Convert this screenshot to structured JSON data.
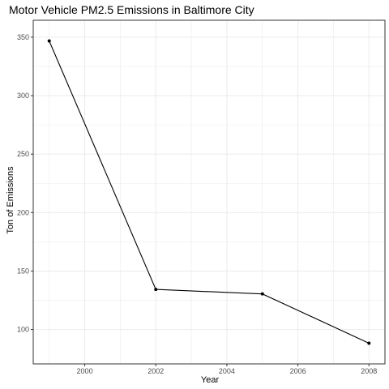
{
  "chart_data": {
    "type": "line",
    "title": "Motor Vehicle PM2.5 Emissions in Baltimore City",
    "xlabel": "Year",
    "ylabel": "Ton of Emissions",
    "x": [
      1999,
      2002,
      2005,
      2008
    ],
    "series": [
      {
        "values": [
          346.82,
          134.31,
          130.43,
          88.28
        ]
      }
    ],
    "xlim": [
      1998.55,
      2008.45
    ],
    "ylim": [
      70.6,
      364.5
    ],
    "x_ticks": [
      2000,
      2002,
      2004,
      2006,
      2008
    ],
    "x_tick_labels": [
      "2000",
      "2002",
      "2004",
      "2006",
      "2008"
    ],
    "y_ticks": [
      100,
      150,
      200,
      250,
      300,
      350
    ],
    "y_tick_labels": [
      "100",
      "150",
      "200",
      "250",
      "300",
      "350"
    ],
    "x_minor": [
      1999,
      2001,
      2003,
      2005,
      2007
    ],
    "y_minor": [
      125,
      175,
      225,
      275,
      325
    ],
    "grid": true,
    "theme": "black-and-white",
    "line_color": "#000000",
    "point_color": "#000000",
    "grid_color": "#ebebeb",
    "panel_border_color": "#333333"
  }
}
